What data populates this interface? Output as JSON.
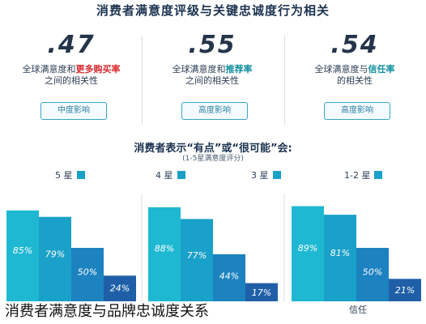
{
  "header": {
    "title": "消费者满意度评级与关键忠诚度行为相关"
  },
  "stats": [
    {
      "value": ".47",
      "line1_pre": "全球满意度和",
      "line1_highlight": "更多购买率",
      "line2": "之间的相关性",
      "badge": "中度影响",
      "highlight_color": "#d8272d"
    },
    {
      "value": ".55",
      "line1_pre": "全球满意度和",
      "line1_highlight": "推荐率",
      "line2": "之间的相关性",
      "badge": "高度影响",
      "highlight_color": "#0f8fa0"
    },
    {
      "value": ".54",
      "line1_pre": "全球满意度与",
      "line1_highlight": "信任率",
      "line2": "的相关性",
      "badge": "高度影响",
      "highlight_color": "#0f8fa0"
    }
  ],
  "section": {
    "title": "消费者表示“有点”或“很可能”会:",
    "subtitle": "(1-5星满意度评分)"
  },
  "legend": [
    {
      "label": "5 星",
      "color": "#1aa1c9"
    },
    {
      "label": "4 星",
      "color": "#1aa1c9"
    },
    {
      "label": "3 星",
      "color": "#1aa1c9"
    },
    {
      "label": "1-2 星",
      "color": "#1aa1c9"
    }
  ],
  "chart_data": {
    "type": "bar",
    "categories": [
      "",
      "",
      "信任"
    ],
    "series": [
      {
        "name": "5 星",
        "values": [
          85,
          88,
          89
        ],
        "color": "#1fb8d2"
      },
      {
        "name": "4 星",
        "values": [
          79,
          77,
          81
        ],
        "color": "#1aa1c9"
      },
      {
        "name": "3 星",
        "values": [
          50,
          44,
          50
        ],
        "color": "#1c82c0"
      },
      {
        "name": "1-2 星",
        "values": [
          24,
          17,
          21
        ],
        "color": "#1f5fa8"
      }
    ],
    "value_suffix": "%",
    "ylim": [
      0,
      100
    ]
  },
  "caption": {
    "text": "消费者满意度与品牌忠诚度关系"
  }
}
